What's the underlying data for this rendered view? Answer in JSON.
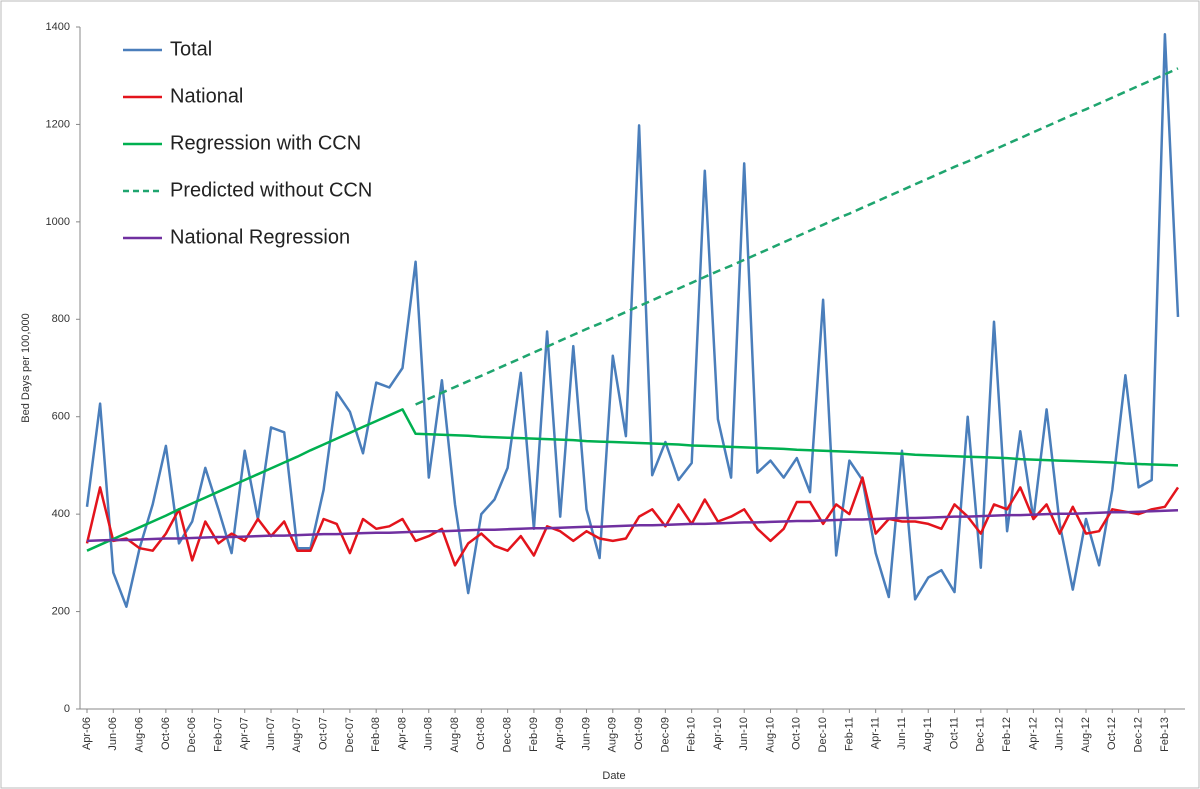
{
  "chart_data": {
    "type": "line",
    "x_label": "Date",
    "y_label": "Bed Days per 100,000",
    "ylim": [
      0,
      1400
    ],
    "yticks": [
      0,
      200,
      400,
      600,
      800,
      1000,
      1200,
      1400
    ],
    "grid": false,
    "legend": "upper left",
    "categories": [
      "Apr-06",
      null,
      "Jun-06",
      null,
      "Aug-06",
      null,
      "Oct-06",
      null,
      "Dec-06",
      null,
      "Feb-07",
      null,
      "Apr-07",
      null,
      "Jun-07",
      null,
      "Aug-07",
      null,
      "Oct-07",
      null,
      "Dec-07",
      null,
      "Feb-08",
      null,
      "Apr-08",
      null,
      "Jun-08",
      null,
      "Aug-08",
      null,
      "Oct-08",
      null,
      "Dec-08",
      null,
      "Feb-09",
      null,
      "Apr-09",
      null,
      "Jun-09",
      null,
      "Aug-09",
      null,
      "Oct-09",
      null,
      "Dec-09",
      null,
      "Feb-10",
      null,
      "Apr-10",
      null,
      "Jun-10",
      null,
      "Aug-10",
      null,
      "Oct-10",
      null,
      "Dec-10",
      null,
      "Feb-11",
      null,
      "Apr-11",
      null,
      "Jun-11",
      null,
      "Aug-11",
      null,
      "Oct-11",
      null,
      "Dec-11",
      null,
      "Feb-12",
      null,
      "Apr-12",
      null,
      "Jun-12",
      null,
      "Aug-12",
      null,
      "Oct-12",
      null,
      "Dec-12",
      null,
      "Feb-13",
      null
    ],
    "series": [
      {
        "name": "Total",
        "color": "#4a7ebb",
        "dash": false,
        "values": [
          415,
          627,
          280,
          210,
          330,
          420,
          540,
          340,
          385,
          495,
          410,
          320,
          530,
          390,
          578,
          568,
          330,
          330,
          450,
          650,
          610,
          525,
          670,
          660,
          700,
          918,
          475,
          675,
          420,
          238,
          400,
          430,
          495,
          690,
          370,
          775,
          395,
          745,
          410,
          310,
          725,
          560,
          1198,
          480,
          548,
          470,
          505,
          1105,
          595,
          475,
          1120,
          485,
          510,
          475,
          515,
          445,
          840,
          315,
          510,
          470,
          320,
          230,
          530,
          225,
          270,
          285,
          240,
          600,
          290,
          795,
          365,
          570,
          390,
          615,
          380,
          245,
          390,
          295,
          450,
          685,
          455,
          470,
          1385,
          805
        ]
      },
      {
        "name": "National",
        "color": "#e3141c",
        "dash": false,
        "values": [
          340,
          455,
          345,
          350,
          330,
          325,
          360,
          410,
          305,
          385,
          340,
          360,
          345,
          390,
          355,
          385,
          325,
          325,
          390,
          380,
          320,
          390,
          370,
          375,
          390,
          345,
          355,
          370,
          295,
          340,
          360,
          335,
          325,
          355,
          315,
          375,
          365,
          345,
          365,
          350,
          345,
          350,
          395,
          410,
          375,
          420,
          380,
          430,
          385,
          395,
          410,
          370,
          345,
          370,
          425,
          425,
          380,
          420,
          400,
          475,
          360,
          390,
          385,
          385,
          380,
          370,
          420,
          395,
          360,
          420,
          410,
          455,
          390,
          420,
          360,
          415,
          360,
          365,
          410,
          405,
          400,
          410,
          415,
          455
        ]
      },
      {
        "name": "Regression with CCN",
        "color": "#00b050",
        "dash": false,
        "values": [
          325,
          337,
          349,
          361,
          373,
          385,
          397,
          410,
          422,
          434,
          446,
          458,
          470,
          482,
          494,
          506,
          518,
          531,
          543,
          555,
          567,
          579,
          591,
          603,
          615,
          565,
          564,
          563,
          562,
          561,
          559,
          558,
          557,
          556,
          555,
          554,
          553,
          552,
          550,
          549,
          548,
          547,
          546,
          545,
          544,
          543,
          541,
          540,
          539,
          538,
          537,
          536,
          535,
          534,
          532,
          531,
          530,
          529,
          528,
          527,
          526,
          525,
          524,
          522,
          521,
          520,
          519,
          518,
          517,
          516,
          515,
          513,
          512,
          511,
          510,
          509,
          508,
          507,
          506,
          504,
          503,
          502,
          501,
          500
        ]
      },
      {
        "name": "Predicted without CCN",
        "color": "#1fa56f",
        "dash": true,
        "values": [
          null,
          null,
          null,
          null,
          null,
          null,
          null,
          null,
          null,
          null,
          null,
          null,
          null,
          null,
          null,
          null,
          null,
          null,
          null,
          null,
          null,
          null,
          null,
          null,
          null,
          625,
          637,
          649,
          661,
          673,
          684,
          696,
          708,
          720,
          732,
          744,
          756,
          768,
          780,
          791,
          803,
          815,
          827,
          839,
          851,
          863,
          875,
          887,
          899,
          910,
          922,
          934,
          946,
          958,
          970,
          982,
          994,
          1006,
          1017,
          1029,
          1041,
          1053,
          1065,
          1077,
          1089,
          1101,
          1113,
          1124,
          1136,
          1148,
          1160,
          1172,
          1184,
          1196,
          1208,
          1220,
          1231,
          1243,
          1255,
          1267,
          1279,
          1291,
          1303,
          1315
        ]
      },
      {
        "name": "National Regression",
        "color": "#7030a0",
        "dash": false,
        "values": [
          345,
          346,
          347,
          347,
          348,
          349,
          350,
          350,
          351,
          352,
          353,
          353,
          354,
          355,
          356,
          356,
          357,
          358,
          359,
          359,
          360,
          361,
          362,
          362,
          363,
          364,
          365,
          365,
          366,
          367,
          368,
          368,
          369,
          370,
          371,
          371,
          372,
          373,
          374,
          374,
          375,
          376,
          377,
          377,
          378,
          379,
          380,
          380,
          381,
          382,
          383,
          383,
          384,
          385,
          386,
          386,
          387,
          388,
          389,
          389,
          390,
          391,
          392,
          392,
          393,
          394,
          395,
          395,
          396,
          397,
          398,
          398,
          399,
          400,
          401,
          401,
          402,
          403,
          404,
          404,
          405,
          406,
          407,
          408
        ]
      }
    ]
  }
}
